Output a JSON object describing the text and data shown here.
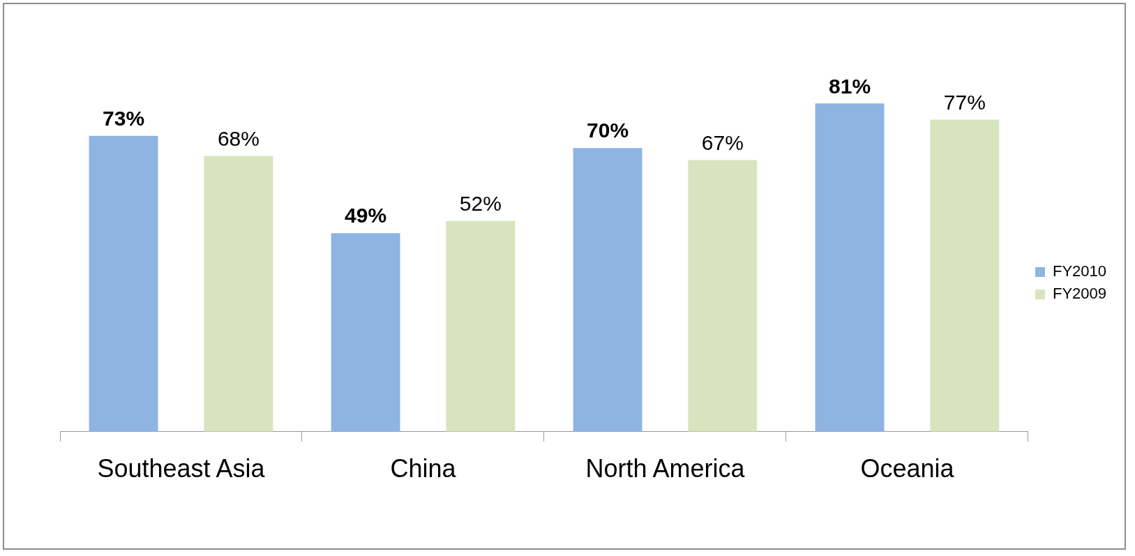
{
  "chart_data": {
    "type": "bar",
    "categories": [
      "Southeast Asia",
      "China",
      "North America",
      "Oceania"
    ],
    "series": [
      {
        "name": "FY2010",
        "color": "#8eb4e3",
        "values": [
          73,
          49,
          70,
          81
        ],
        "value_labels": [
          "73%",
          "49%",
          "70%",
          "81%"
        ]
      },
      {
        "name": "FY2009",
        "color": "#d7e4bd",
        "values": [
          68,
          52,
          67,
          77
        ],
        "value_labels": [
          "68%",
          "52%",
          "67%",
          "77%"
        ]
      }
    ],
    "legend": "right",
    "grid": false
  }
}
